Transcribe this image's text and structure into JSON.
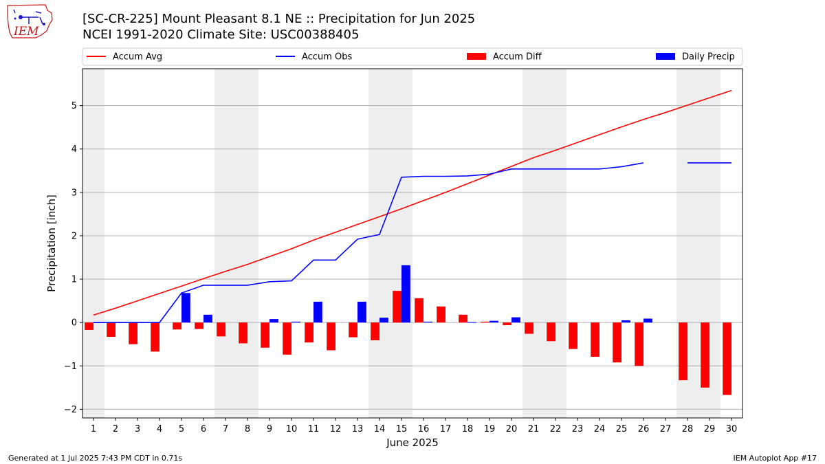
{
  "header": {
    "title_line1": "[SC-CR-225] Mount Pleasant 8.1 NE :: Precipitation for Jun 2025",
    "title_line2": "NCEI 1991-2020 Climate Site: USC00388405"
  },
  "logo": {
    "text": "IEM"
  },
  "footer": {
    "generated": "Generated at 1 Jul 2025 7:43 PM CDT in 0.71s",
    "app": "IEM Autoplot App #17"
  },
  "colors": {
    "avg": "#ff0000",
    "obs": "#0000ff",
    "diff": "#ff0000",
    "daily": "#0000ff",
    "weekend": "#eeeeee",
    "grid": "#b0b0b0"
  },
  "chart_data": {
    "type": "bar",
    "title": "[SC-CR-225] Mount Pleasant 8.1 NE :: Precipitation for Jun 2025",
    "subtitle": "NCEI 1991-2020 Climate Site: USC00388405",
    "xlabel": "June 2025",
    "ylabel": "Precipitation [inch]",
    "ylim": [
      -2.2,
      5.85
    ],
    "xlim": [
      0.5,
      30.5
    ],
    "yticks": [
      -2,
      -1,
      0,
      1,
      2,
      3,
      4,
      5
    ],
    "ytick_labels": [
      "−2",
      "−1",
      "0",
      "1",
      "2",
      "3",
      "4",
      "5"
    ],
    "grid": "horizontal",
    "legend_placement": "top (above plot, single row)",
    "shaded_days": [
      [
        0.5,
        1.5
      ],
      [
        6.5,
        8.5
      ],
      [
        13.5,
        15.5
      ],
      [
        20.5,
        22.5
      ],
      [
        27.5,
        29.5
      ]
    ],
    "days": [
      1,
      2,
      3,
      4,
      5,
      6,
      7,
      8,
      9,
      10,
      11,
      12,
      13,
      14,
      15,
      16,
      17,
      18,
      19,
      20,
      21,
      22,
      23,
      24,
      25,
      26,
      27,
      28,
      29,
      30
    ],
    "legend": [
      "Accum Avg",
      "Accum Obs",
      "Accum Diff",
      "Daily Precip"
    ],
    "series": [
      {
        "name": "Accum Avg",
        "kind": "line",
        "values": [
          0.17,
          0.33,
          0.5,
          0.67,
          0.84,
          1.01,
          1.18,
          1.34,
          1.52,
          1.7,
          1.9,
          2.08,
          2.26,
          2.44,
          2.62,
          2.81,
          3.0,
          3.2,
          3.4,
          3.6,
          3.8,
          3.97,
          4.15,
          4.33,
          4.51,
          4.68,
          4.84,
          5.01,
          5.18,
          5.35
        ]
      },
      {
        "name": "Accum Obs",
        "kind": "line",
        "values": [
          0.0,
          0.0,
          0.0,
          0.0,
          0.68,
          0.86,
          0.86,
          0.86,
          0.94,
          0.96,
          1.44,
          1.44,
          1.92,
          2.03,
          3.35,
          3.37,
          3.37,
          3.38,
          3.42,
          3.54,
          3.54,
          3.54,
          3.54,
          3.54,
          3.59,
          3.68,
          null,
          3.68,
          3.68,
          3.68
        ]
      },
      {
        "name": "Accum Diff",
        "kind": "bar",
        "values": [
          -0.17,
          -0.33,
          -0.5,
          -0.67,
          -0.16,
          -0.15,
          -0.32,
          -0.48,
          -0.58,
          -0.74,
          -0.46,
          -0.64,
          -0.34,
          -0.41,
          0.73,
          0.56,
          0.37,
          0.18,
          0.02,
          -0.06,
          -0.26,
          -0.43,
          -0.61,
          -0.79,
          -0.92,
          -1.0,
          null,
          -1.33,
          -1.5,
          -1.67
        ]
      },
      {
        "name": "Daily Precip",
        "kind": "bar",
        "values": [
          0,
          0,
          0,
          0,
          0.68,
          0.18,
          0,
          0,
          0.08,
          0.02,
          0.48,
          0,
          0.48,
          0.11,
          1.32,
          0.02,
          0,
          0.01,
          0.04,
          0.12,
          0,
          0,
          0,
          0,
          0.05,
          0.09,
          null,
          0,
          0,
          0
        ]
      }
    ]
  }
}
